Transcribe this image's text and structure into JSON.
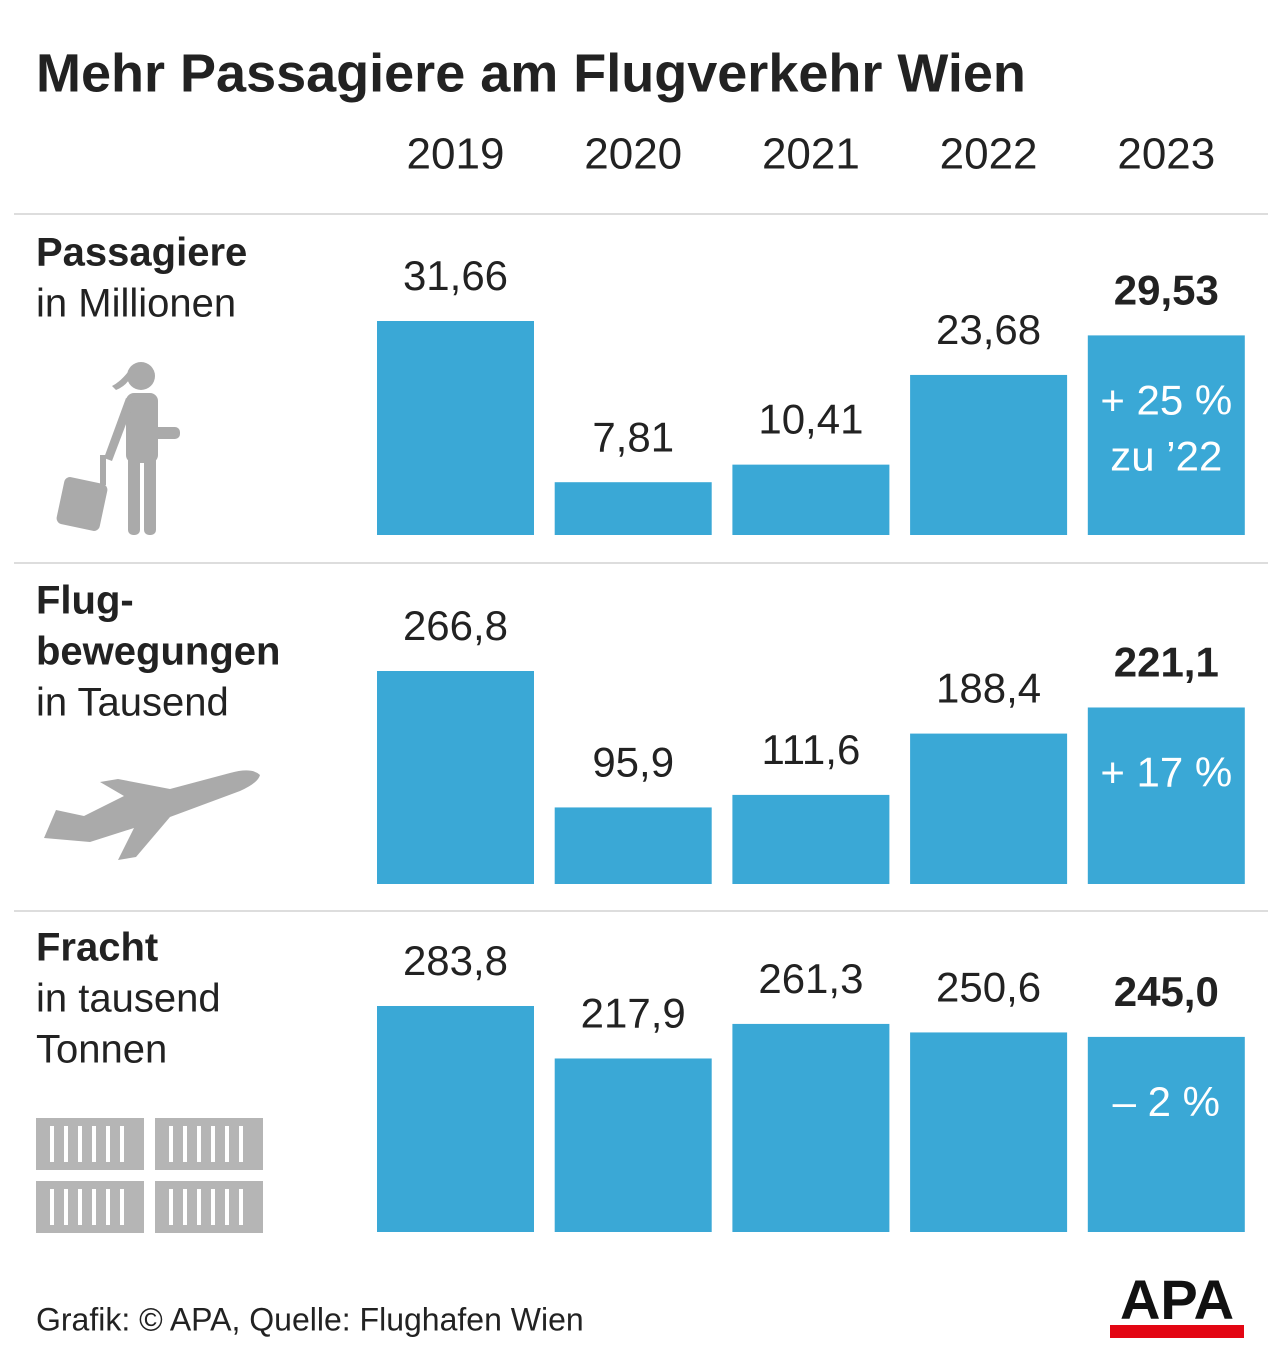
{
  "title": "Mehr Passagiere am Flugverkehr Wien",
  "categories": [
    "2019",
    "2020",
    "2021",
    "2022",
    "2023"
  ],
  "chart_data": [
    {
      "type": "bar",
      "title": [
        "Passagiere"
      ],
      "subtitle": [
        "in Millionen"
      ],
      "color": "#3aa8d6",
      "values": [
        31.66,
        7.81,
        10.41,
        23.68,
        29.53
      ],
      "value_labels": [
        "31,66",
        "7,81",
        "10,41",
        "23,68",
        "29,53"
      ],
      "annotation": [
        "+ 25 %",
        "zu ’22"
      ]
    },
    {
      "type": "bar",
      "title": [
        "Flug-",
        "bewegungen"
      ],
      "subtitle": [
        "in Tausend"
      ],
      "color": "#3aa8d6",
      "values": [
        266.8,
        95.9,
        111.6,
        188.4,
        221.1
      ],
      "value_labels": [
        "266,8",
        "95,9",
        "111,6",
        "188,4",
        "221,1"
      ],
      "annotation": [
        "+ 17 %"
      ]
    },
    {
      "type": "bar",
      "title": [
        "Fracht"
      ],
      "subtitle": [
        "in tausend",
        "Tonnen"
      ],
      "color": "#3aa8d6",
      "values": [
        283.8,
        217.9,
        261.3,
        250.6,
        245.0
      ],
      "value_labels": [
        "283,8",
        "217,9",
        "261,3",
        "250,6",
        "245,0"
      ],
      "annotation": [
        "– 2 %"
      ]
    }
  ],
  "source": "Grafik: © APA, Quelle: Flughafen Wien",
  "logo": "APA"
}
